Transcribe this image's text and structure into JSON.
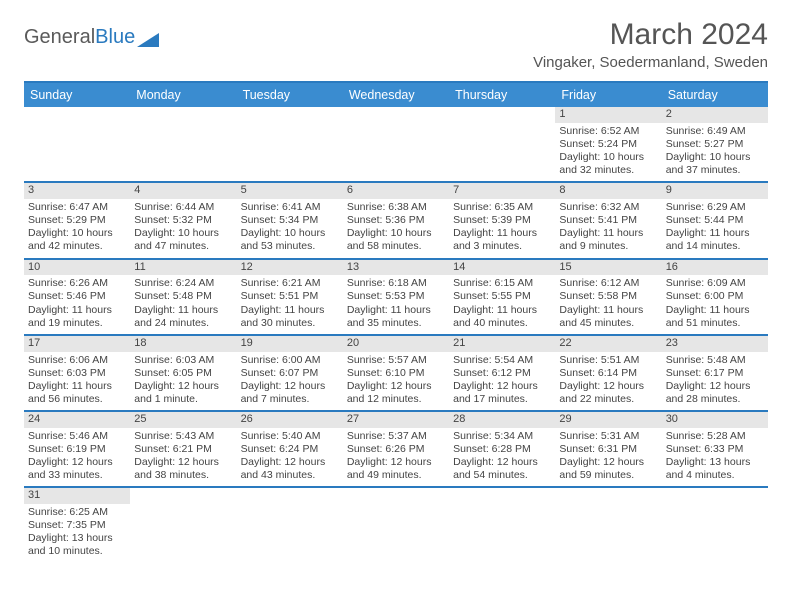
{
  "logo": {
    "text_a": "General",
    "text_b": "Blue",
    "triangle_color": "#2a7abf"
  },
  "title": "March 2024",
  "location": "Vingaker, Soedermanland, Sweden",
  "colors": {
    "header_bg": "#3a8cd0",
    "row_border": "#2a7abf",
    "daynum_bg": "#e6e6e6",
    "text": "#444444"
  },
  "day_names": [
    "Sunday",
    "Monday",
    "Tuesday",
    "Wednesday",
    "Thursday",
    "Friday",
    "Saturday"
  ],
  "weeks": [
    [
      {
        "n": "",
        "sr": "",
        "ss": "",
        "dl": ""
      },
      {
        "n": "",
        "sr": "",
        "ss": "",
        "dl": ""
      },
      {
        "n": "",
        "sr": "",
        "ss": "",
        "dl": ""
      },
      {
        "n": "",
        "sr": "",
        "ss": "",
        "dl": ""
      },
      {
        "n": "",
        "sr": "",
        "ss": "",
        "dl": ""
      },
      {
        "n": "1",
        "sr": "Sunrise: 6:52 AM",
        "ss": "Sunset: 5:24 PM",
        "dl": "Daylight: 10 hours and 32 minutes."
      },
      {
        "n": "2",
        "sr": "Sunrise: 6:49 AM",
        "ss": "Sunset: 5:27 PM",
        "dl": "Daylight: 10 hours and 37 minutes."
      }
    ],
    [
      {
        "n": "3",
        "sr": "Sunrise: 6:47 AM",
        "ss": "Sunset: 5:29 PM",
        "dl": "Daylight: 10 hours and 42 minutes."
      },
      {
        "n": "4",
        "sr": "Sunrise: 6:44 AM",
        "ss": "Sunset: 5:32 PM",
        "dl": "Daylight: 10 hours and 47 minutes."
      },
      {
        "n": "5",
        "sr": "Sunrise: 6:41 AM",
        "ss": "Sunset: 5:34 PM",
        "dl": "Daylight: 10 hours and 53 minutes."
      },
      {
        "n": "6",
        "sr": "Sunrise: 6:38 AM",
        "ss": "Sunset: 5:36 PM",
        "dl": "Daylight: 10 hours and 58 minutes."
      },
      {
        "n": "7",
        "sr": "Sunrise: 6:35 AM",
        "ss": "Sunset: 5:39 PM",
        "dl": "Daylight: 11 hours and 3 minutes."
      },
      {
        "n": "8",
        "sr": "Sunrise: 6:32 AM",
        "ss": "Sunset: 5:41 PM",
        "dl": "Daylight: 11 hours and 9 minutes."
      },
      {
        "n": "9",
        "sr": "Sunrise: 6:29 AM",
        "ss": "Sunset: 5:44 PM",
        "dl": "Daylight: 11 hours and 14 minutes."
      }
    ],
    [
      {
        "n": "10",
        "sr": "Sunrise: 6:26 AM",
        "ss": "Sunset: 5:46 PM",
        "dl": "Daylight: 11 hours and 19 minutes."
      },
      {
        "n": "11",
        "sr": "Sunrise: 6:24 AM",
        "ss": "Sunset: 5:48 PM",
        "dl": "Daylight: 11 hours and 24 minutes."
      },
      {
        "n": "12",
        "sr": "Sunrise: 6:21 AM",
        "ss": "Sunset: 5:51 PM",
        "dl": "Daylight: 11 hours and 30 minutes."
      },
      {
        "n": "13",
        "sr": "Sunrise: 6:18 AM",
        "ss": "Sunset: 5:53 PM",
        "dl": "Daylight: 11 hours and 35 minutes."
      },
      {
        "n": "14",
        "sr": "Sunrise: 6:15 AM",
        "ss": "Sunset: 5:55 PM",
        "dl": "Daylight: 11 hours and 40 minutes."
      },
      {
        "n": "15",
        "sr": "Sunrise: 6:12 AM",
        "ss": "Sunset: 5:58 PM",
        "dl": "Daylight: 11 hours and 45 minutes."
      },
      {
        "n": "16",
        "sr": "Sunrise: 6:09 AM",
        "ss": "Sunset: 6:00 PM",
        "dl": "Daylight: 11 hours and 51 minutes."
      }
    ],
    [
      {
        "n": "17",
        "sr": "Sunrise: 6:06 AM",
        "ss": "Sunset: 6:03 PM",
        "dl": "Daylight: 11 hours and 56 minutes."
      },
      {
        "n": "18",
        "sr": "Sunrise: 6:03 AM",
        "ss": "Sunset: 6:05 PM",
        "dl": "Daylight: 12 hours and 1 minute."
      },
      {
        "n": "19",
        "sr": "Sunrise: 6:00 AM",
        "ss": "Sunset: 6:07 PM",
        "dl": "Daylight: 12 hours and 7 minutes."
      },
      {
        "n": "20",
        "sr": "Sunrise: 5:57 AM",
        "ss": "Sunset: 6:10 PM",
        "dl": "Daylight: 12 hours and 12 minutes."
      },
      {
        "n": "21",
        "sr": "Sunrise: 5:54 AM",
        "ss": "Sunset: 6:12 PM",
        "dl": "Daylight: 12 hours and 17 minutes."
      },
      {
        "n": "22",
        "sr": "Sunrise: 5:51 AM",
        "ss": "Sunset: 6:14 PM",
        "dl": "Daylight: 12 hours and 22 minutes."
      },
      {
        "n": "23",
        "sr": "Sunrise: 5:48 AM",
        "ss": "Sunset: 6:17 PM",
        "dl": "Daylight: 12 hours and 28 minutes."
      }
    ],
    [
      {
        "n": "24",
        "sr": "Sunrise: 5:46 AM",
        "ss": "Sunset: 6:19 PM",
        "dl": "Daylight: 12 hours and 33 minutes."
      },
      {
        "n": "25",
        "sr": "Sunrise: 5:43 AM",
        "ss": "Sunset: 6:21 PM",
        "dl": "Daylight: 12 hours and 38 minutes."
      },
      {
        "n": "26",
        "sr": "Sunrise: 5:40 AM",
        "ss": "Sunset: 6:24 PM",
        "dl": "Daylight: 12 hours and 43 minutes."
      },
      {
        "n": "27",
        "sr": "Sunrise: 5:37 AM",
        "ss": "Sunset: 6:26 PM",
        "dl": "Daylight: 12 hours and 49 minutes."
      },
      {
        "n": "28",
        "sr": "Sunrise: 5:34 AM",
        "ss": "Sunset: 6:28 PM",
        "dl": "Daylight: 12 hours and 54 minutes."
      },
      {
        "n": "29",
        "sr": "Sunrise: 5:31 AM",
        "ss": "Sunset: 6:31 PM",
        "dl": "Daylight: 12 hours and 59 minutes."
      },
      {
        "n": "30",
        "sr": "Sunrise: 5:28 AM",
        "ss": "Sunset: 6:33 PM",
        "dl": "Daylight: 13 hours and 4 minutes."
      }
    ],
    [
      {
        "n": "31",
        "sr": "Sunrise: 6:25 AM",
        "ss": "Sunset: 7:35 PM",
        "dl": "Daylight: 13 hours and 10 minutes."
      },
      {
        "n": "",
        "sr": "",
        "ss": "",
        "dl": ""
      },
      {
        "n": "",
        "sr": "",
        "ss": "",
        "dl": ""
      },
      {
        "n": "",
        "sr": "",
        "ss": "",
        "dl": ""
      },
      {
        "n": "",
        "sr": "",
        "ss": "",
        "dl": ""
      },
      {
        "n": "",
        "sr": "",
        "ss": "",
        "dl": ""
      },
      {
        "n": "",
        "sr": "",
        "ss": "",
        "dl": ""
      }
    ]
  ]
}
